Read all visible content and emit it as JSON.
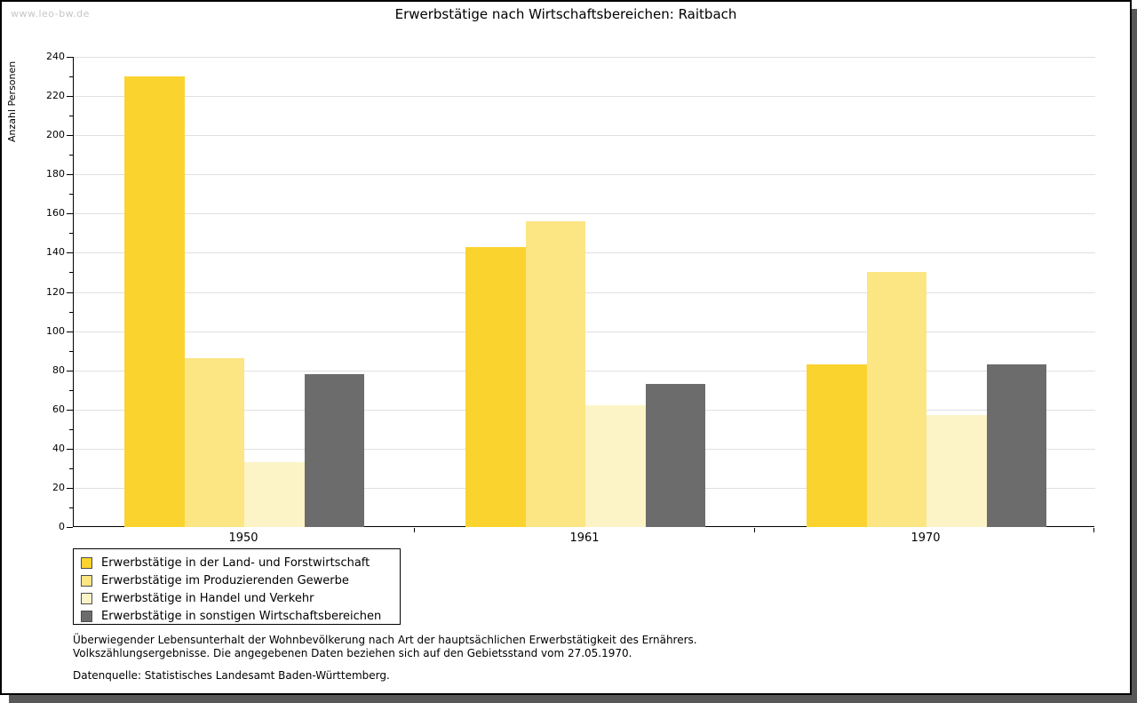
{
  "watermark": "www.leo-bw.de",
  "chart_data": {
    "type": "bar",
    "title": "Erwerbstätige nach Wirtschaftsbereichen: Raitbach",
    "ylabel": "Anzahl Personen",
    "xlabel": "",
    "ylim": [
      0,
      240
    ],
    "ytick_step": 20,
    "ytick_minor_step": 10,
    "grid": true,
    "legend_position": "bottom-left",
    "categories": [
      "1950",
      "1961",
      "1970"
    ],
    "series": [
      {
        "name": "Erwerbstätige in der Land- und Forstwirtschaft",
        "color": "#FBD32F",
        "values": [
          230,
          143,
          83
        ]
      },
      {
        "name": "Erwerbstätige im Produzierenden Gewerbe",
        "color": "#FCE583",
        "values": [
          86,
          156,
          130
        ]
      },
      {
        "name": "Erwerbstätige in Handel und Verkehr",
        "color": "#FCF4C6",
        "values": [
          33,
          62,
          57
        ]
      },
      {
        "name": "Erwerbstätige in sonstigen Wirtschaftsbereichen",
        "color": "#6C6C6C",
        "values": [
          78,
          73,
          83
        ]
      }
    ]
  },
  "footnotes": {
    "line1": "Überwiegender Lebensunterhalt der Wohnbevölkerung nach Art der hauptsächlichen Erwerbstätigkeit des Ernährers.",
    "line2": "Volkszählungsergebnisse. Die angegebenen Daten beziehen sich auf den Gebietsstand vom 27.05.1970.",
    "source": "Datenquelle: Statistisches Landesamt Baden-Württemberg."
  },
  "colors": {
    "grid": "#e0e0e0",
    "axis": "#000000",
    "shadow": "#585858",
    "watermark": "#c6c6c6"
  }
}
